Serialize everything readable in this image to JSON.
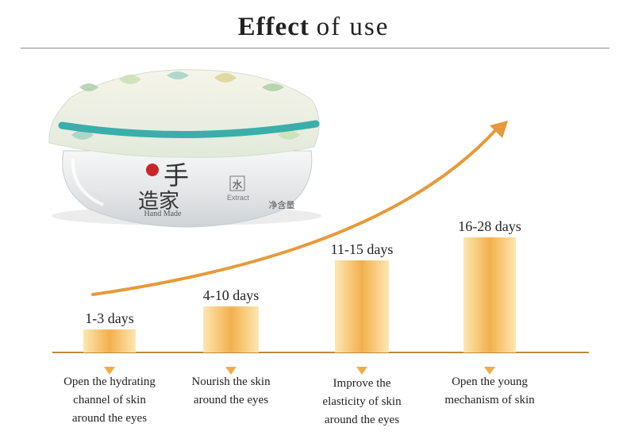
{
  "title": {
    "bold": "Effect",
    "rest": "of use"
  },
  "product": {
    "brand_mark": "手\n造家",
    "brand_text": "Hand Made",
    "label_text": "水",
    "label_sub": "Extract",
    "label_net": "净含量"
  },
  "colors": {
    "bar_light": "#fde7b2",
    "bar_dark": "#f2b04c",
    "arrow": "#e69a39",
    "baseline": "#b98a43",
    "marker": "#f0ad45",
    "ribbon": "#3aaeaa"
  },
  "chart_data": {
    "type": "bar",
    "title": "Effect of use",
    "categories": [
      "1-3 days",
      "4-10 days",
      "11-15 days",
      "16-28 days"
    ],
    "values": [
      1,
      2,
      4,
      5
    ],
    "descriptions": [
      "Open the hydrating\nchannel of skin\naround the eyes",
      "Nourish the skin\naround the eyes",
      "Improve the\nelasticity of skin\naround the eyes",
      "Open the young\nmechanism of skin"
    ],
    "xlabel": "",
    "ylabel": "",
    "ylim": [
      0,
      5
    ],
    "trend_arrow": true,
    "grid": false
  }
}
